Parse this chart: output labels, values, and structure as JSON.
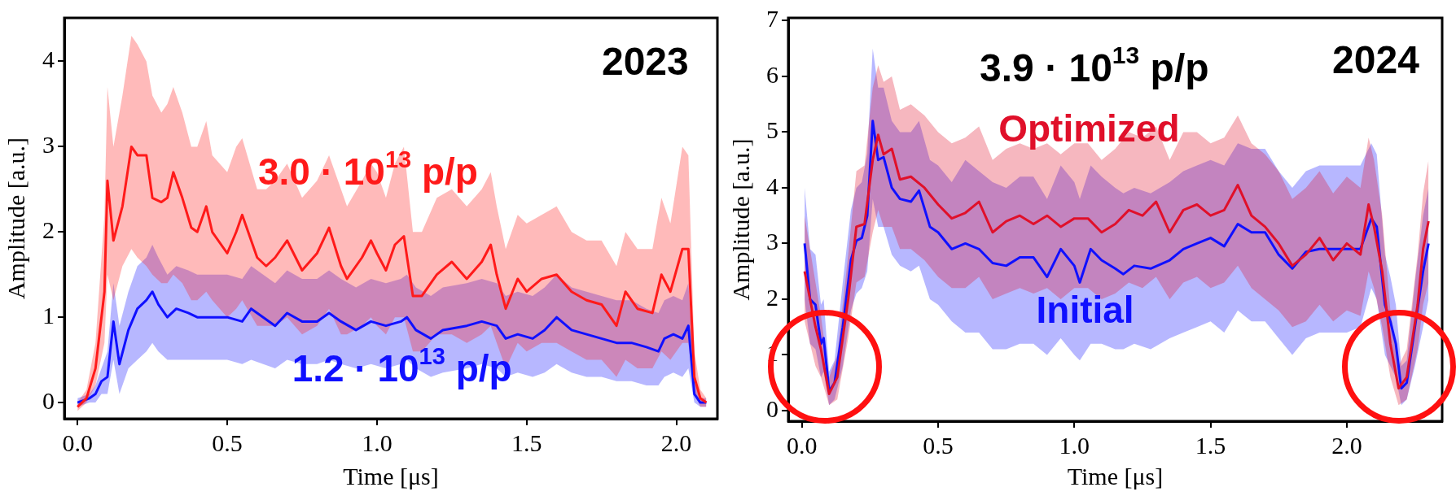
{
  "chart_data": [
    {
      "type": "line",
      "xlabel": "Time [μs]",
      "ylabel": "Amplitude [a.u.]",
      "xlim": [
        -0.044,
        2.137
      ],
      "ylim": [
        -0.19,
        4.51
      ],
      "xticks": [
        {
          "value": 0,
          "label": "0.0"
        },
        {
          "value": 0.5,
          "label": "0.5"
        },
        {
          "value": 1,
          "label": "1.0"
        },
        {
          "value": 1.5,
          "label": "1.5"
        },
        {
          "value": 2,
          "label": "2.0"
        }
      ],
      "yticks": [
        0,
        1,
        2,
        3,
        4
      ],
      "annotations": [
        "2023"
      ],
      "series": [
        {
          "name": "3.0 · 10$^{13}$ p/p",
          "color": "#ff1a1a",
          "x": [
            0,
            0.03,
            0.06,
            0.09,
            0.1,
            0.12,
            0.15,
            0.18,
            0.2,
            0.23,
            0.25,
            0.28,
            0.3,
            0.32,
            0.35,
            0.38,
            0.4,
            0.43,
            0.45,
            0.5,
            0.53,
            0.55,
            0.6,
            0.63,
            0.66,
            0.7,
            0.75,
            0.8,
            0.84,
            0.88,
            0.9,
            0.95,
            0.98,
            1.0,
            1.03,
            1.06,
            1.09,
            1.12,
            1.15,
            1.2,
            1.25,
            1.3,
            1.35,
            1.38,
            1.4,
            1.43,
            1.47,
            1.5,
            1.55,
            1.6,
            1.65,
            1.7,
            1.75,
            1.8,
            1.83,
            1.87,
            1.92,
            1.95,
            1.98,
            2.02,
            2.04,
            2.06,
            2.08,
            2.1
          ],
          "values": [
            -0.05,
            0.05,
            0.4,
            1.3,
            2.6,
            1.9,
            2.3,
            3.0,
            2.9,
            2.9,
            2.4,
            2.35,
            2.4,
            2.7,
            2.4,
            2.05,
            2.0,
            2.3,
            2.0,
            1.75,
            2.0,
            2.2,
            1.7,
            1.6,
            1.7,
            1.9,
            1.55,
            1.75,
            2.05,
            1.6,
            1.45,
            1.7,
            1.9,
            1.75,
            1.55,
            1.85,
            1.95,
            1.25,
            1.25,
            1.5,
            1.65,
            1.45,
            1.65,
            1.85,
            1.5,
            1.1,
            1.45,
            1.3,
            1.45,
            1.5,
            1.3,
            1.2,
            1.15,
            0.9,
            1.3,
            1.1,
            1.05,
            1.5,
            1.3,
            1.8,
            1.8,
            0.3,
            0.05,
            0.0
          ],
          "lower": [
            -0.1,
            0,
            0.2,
            0.7,
            1.5,
            1.2,
            1.6,
            1.8,
            1.7,
            1.6,
            1.5,
            1.4,
            1.4,
            1.5,
            1.4,
            1.2,
            1.2,
            1.3,
            1.2,
            1.0,
            1.1,
            1.2,
            0.9,
            0.9,
            0.9,
            1.0,
            0.8,
            0.9,
            1.1,
            0.8,
            0.8,
            0.9,
            1.0,
            0.9,
            0.8,
            1.0,
            1.0,
            0.6,
            0.6,
            0.8,
            0.8,
            0.7,
            0.8,
            0.9,
            0.7,
            0.4,
            0.7,
            0.6,
            0.7,
            0.7,
            0.6,
            0.5,
            0.5,
            0.3,
            0.5,
            0.4,
            0.4,
            0.6,
            0.5,
            0.7,
            0.7,
            0.1,
            -0.05,
            -0.05
          ],
          "upper": [
            0,
            0.15,
            0.7,
            2.2,
            3.7,
            3.0,
            3.6,
            4.3,
            4.2,
            4.0,
            3.6,
            3.4,
            3.5,
            3.7,
            3.4,
            3.0,
            3.0,
            3.3,
            2.9,
            2.7,
            3.0,
            3.1,
            2.5,
            2.5,
            2.6,
            2.8,
            2.4,
            2.6,
            2.9,
            2.5,
            2.3,
            2.6,
            2.8,
            2.7,
            2.4,
            2.8,
            3.0,
            2.0,
            2.0,
            2.4,
            2.5,
            2.3,
            2.5,
            2.7,
            2.3,
            1.8,
            2.2,
            2.1,
            2.2,
            2.3,
            2.0,
            1.9,
            1.9,
            1.6,
            2.0,
            1.8,
            1.8,
            2.4,
            2.1,
            3.0,
            2.9,
            0.6,
            0.15,
            0.05
          ]
        },
        {
          "name": "1.2 · 10$^{13}$ p/p",
          "color": "#1010ff",
          "x": [
            0,
            0.04,
            0.06,
            0.08,
            0.1,
            0.12,
            0.14,
            0.17,
            0.2,
            0.23,
            0.25,
            0.27,
            0.3,
            0.33,
            0.37,
            0.4,
            0.45,
            0.5,
            0.55,
            0.58,
            0.62,
            0.66,
            0.7,
            0.75,
            0.8,
            0.84,
            0.88,
            0.93,
            0.98,
            1.03,
            1.08,
            1.1,
            1.13,
            1.18,
            1.22,
            1.3,
            1.35,
            1.4,
            1.43,
            1.47,
            1.52,
            1.56,
            1.6,
            1.65,
            1.7,
            1.75,
            1.8,
            1.85,
            1.9,
            1.94,
            1.96,
            1.99,
            2.02,
            2.04,
            2.06,
            2.08,
            2.1
          ],
          "values": [
            0.0,
            0.05,
            0.1,
            0.25,
            0.3,
            0.95,
            0.45,
            0.85,
            1.1,
            1.2,
            1.3,
            1.15,
            1.0,
            1.1,
            1.05,
            1.0,
            1.0,
            1.0,
            0.95,
            1.1,
            1.0,
            0.9,
            1.05,
            0.95,
            0.95,
            1.05,
            0.95,
            0.85,
            0.95,
            0.9,
            0.95,
            1.0,
            0.85,
            0.75,
            0.85,
            0.9,
            0.95,
            0.9,
            0.75,
            0.8,
            0.75,
            0.85,
            1.0,
            0.85,
            0.8,
            0.75,
            0.7,
            0.7,
            0.65,
            0.6,
            0.75,
            0.8,
            0.75,
            0.9,
            0.1,
            0.0,
            0.0
          ],
          "lower": [
            -0.05,
            0,
            0,
            0.1,
            0.1,
            0.5,
            0.1,
            0.4,
            0.5,
            0.6,
            0.7,
            0.6,
            0.5,
            0.5,
            0.5,
            0.5,
            0.5,
            0.5,
            0.45,
            0.5,
            0.45,
            0.4,
            0.5,
            0.45,
            0.45,
            0.5,
            0.45,
            0.4,
            0.45,
            0.4,
            0.45,
            0.5,
            0.4,
            0.3,
            0.35,
            0.4,
            0.45,
            0.4,
            0.3,
            0.35,
            0.3,
            0.35,
            0.45,
            0.35,
            0.3,
            0.3,
            0.25,
            0.25,
            0.2,
            0.2,
            0.3,
            0.35,
            0.3,
            0.4,
            0,
            -0.05,
            -0.05
          ],
          "upper": [
            0.05,
            0.1,
            0.2,
            0.4,
            0.6,
            1.4,
            0.9,
            1.3,
            1.6,
            1.7,
            1.85,
            1.7,
            1.5,
            1.6,
            1.55,
            1.5,
            1.5,
            1.5,
            1.45,
            1.6,
            1.5,
            1.4,
            1.55,
            1.45,
            1.45,
            1.55,
            1.45,
            1.35,
            1.45,
            1.4,
            1.45,
            1.5,
            1.35,
            1.25,
            1.35,
            1.4,
            1.45,
            1.4,
            1.25,
            1.3,
            1.25,
            1.35,
            1.5,
            1.35,
            1.3,
            1.25,
            1.2,
            1.2,
            1.1,
            1.05,
            1.2,
            1.25,
            1.2,
            1.4,
            0.3,
            0.05,
            0.05
          ]
        }
      ]
    },
    {
      "type": "line",
      "xlabel": "Time [μs]",
      "ylabel": "Amplitude [a.u.]",
      "xlim": [
        -0.05,
        2.35
      ],
      "ylim": [
        -0.19,
        7.05
      ],
      "xticks": [
        {
          "value": 0,
          "label": "0.0"
        },
        {
          "value": 0.5,
          "label": "0.5"
        },
        {
          "value": 1,
          "label": "1.0"
        },
        {
          "value": 1.5,
          "label": "1.5"
        },
        {
          "value": 2,
          "label": "2.0"
        }
      ],
      "yticks": [
        0,
        1,
        2,
        3,
        4,
        5,
        6,
        7
      ],
      "annotations": [
        "2024",
        "3.9 · 10$^{13}$ p/p"
      ],
      "series": [
        {
          "name": "Optimized",
          "color": "#e0102a",
          "x": [
            0.01,
            0.05,
            0.07,
            0.1,
            0.13,
            0.17,
            0.2,
            0.23,
            0.26,
            0.28,
            0.3,
            0.33,
            0.36,
            0.4,
            0.45,
            0.5,
            0.55,
            0.6,
            0.65,
            0.7,
            0.75,
            0.8,
            0.85,
            0.9,
            0.95,
            1.0,
            1.05,
            1.1,
            1.15,
            1.2,
            1.25,
            1.3,
            1.35,
            1.4,
            1.45,
            1.5,
            1.55,
            1.6,
            1.65,
            1.7,
            1.75,
            1.8,
            1.85,
            1.9,
            1.95,
            2.0,
            2.05,
            2.08,
            2.1,
            2.13,
            2.16,
            2.19,
            2.22,
            2.26,
            2.28,
            2.3
          ],
          "values": [
            2.5,
            1.5,
            1.1,
            0.3,
            0.6,
            2.0,
            3.3,
            3.35,
            4.5,
            4.95,
            4.6,
            4.7,
            4.15,
            4.2,
            4.0,
            3.7,
            3.45,
            3.55,
            3.75,
            3.2,
            3.4,
            3.5,
            3.35,
            3.5,
            3.3,
            3.45,
            3.45,
            3.2,
            3.35,
            3.6,
            3.5,
            3.75,
            3.2,
            3.6,
            3.7,
            3.5,
            3.6,
            4.05,
            3.5,
            3.3,
            3.0,
            2.6,
            2.8,
            3.1,
            2.7,
            3.0,
            2.8,
            3.7,
            3.3,
            2.5,
            1.2,
            0.4,
            0.6,
            1.9,
            2.9,
            3.4
          ],
          "lower": [
            1.6,
            0.8,
            0.6,
            0.1,
            0.2,
            1.3,
            2.3,
            2.4,
            3.2,
            3.6,
            3.3,
            3.3,
            2.9,
            2.9,
            2.7,
            2.4,
            2.2,
            2.2,
            2.4,
            2.0,
            2.1,
            2.2,
            2.1,
            2.2,
            2.0,
            2.2,
            2.2,
            2.0,
            2.1,
            2.3,
            2.2,
            2.4,
            2.0,
            2.3,
            2.4,
            2.2,
            2.3,
            2.6,
            2.2,
            2.0,
            1.8,
            1.5,
            1.6,
            1.9,
            1.6,
            1.8,
            1.7,
            2.5,
            2.2,
            1.5,
            0.6,
            0.1,
            0.2,
            1.1,
            1.9,
            2.3
          ],
          "upper": [
            3.5,
            2.3,
            1.7,
            0.6,
            1.0,
            2.8,
            4.3,
            4.4,
            5.8,
            6.2,
            5.9,
            6.0,
            5.4,
            5.5,
            5.3,
            5.0,
            4.8,
            4.9,
            5.1,
            4.5,
            4.7,
            4.8,
            4.7,
            4.8,
            4.6,
            4.8,
            4.8,
            4.5,
            4.7,
            5.0,
            4.9,
            5.1,
            4.5,
            5.0,
            5.0,
            4.8,
            4.9,
            5.3,
            4.8,
            4.6,
            4.3,
            3.8,
            4.0,
            4.3,
            3.9,
            4.2,
            4.0,
            4.9,
            4.5,
            3.5,
            1.8,
            0.8,
            1.1,
            2.8,
            3.9,
            4.5
          ]
        },
        {
          "name": "Initial",
          "color": "#1010ff",
          "x": [
            0.01,
            0.03,
            0.05,
            0.07,
            0.08,
            0.1,
            0.12,
            0.15,
            0.18,
            0.2,
            0.22,
            0.24,
            0.26,
            0.28,
            0.3,
            0.33,
            0.36,
            0.4,
            0.43,
            0.47,
            0.5,
            0.55,
            0.6,
            0.65,
            0.7,
            0.75,
            0.8,
            0.85,
            0.9,
            0.95,
            1.0,
            1.02,
            1.06,
            1.1,
            1.15,
            1.18,
            1.22,
            1.28,
            1.35,
            1.4,
            1.45,
            1.5,
            1.55,
            1.6,
            1.65,
            1.7,
            1.75,
            1.8,
            1.85,
            1.9,
            1.95,
            2.0,
            2.05,
            2.09,
            2.11,
            2.14,
            2.16,
            2.18,
            2.2,
            2.22,
            2.25,
            2.28,
            2.3
          ],
          "values": [
            3.0,
            2.0,
            1.9,
            1.2,
            1.3,
            0.35,
            0.5,
            1.5,
            2.7,
            3.05,
            3.1,
            3.5,
            5.2,
            4.5,
            4.55,
            4.0,
            3.8,
            3.75,
            3.95,
            3.3,
            3.2,
            2.9,
            3.0,
            2.9,
            2.65,
            2.6,
            2.75,
            2.75,
            2.4,
            2.9,
            2.6,
            2.3,
            2.9,
            2.7,
            2.55,
            2.45,
            2.6,
            2.55,
            2.7,
            2.9,
            3.0,
            3.1,
            2.95,
            3.35,
            3.2,
            3.2,
            2.8,
            2.55,
            2.85,
            2.9,
            2.9,
            2.9,
            2.9,
            3.45,
            3.3,
            1.9,
            1.6,
            1.2,
            0.4,
            0.5,
            1.5,
            2.5,
            3.0
          ],
          "lower": [
            2.0,
            1.2,
            1.1,
            0.6,
            0.7,
            0.1,
            0.2,
            0.8,
            1.8,
            2.1,
            2.2,
            2.5,
            3.8,
            3.3,
            3.3,
            2.8,
            2.6,
            2.5,
            2.6,
            2.0,
            1.9,
            1.6,
            1.4,
            1.4,
            1.1,
            1.1,
            1.2,
            1.2,
            1.0,
            1.3,
            1.0,
            0.9,
            1.2,
            1.2,
            1.1,
            1.1,
            1.2,
            1.1,
            1.3,
            1.4,
            1.5,
            1.6,
            1.4,
            1.8,
            1.6,
            1.6,
            1.3,
            1.0,
            1.3,
            1.4,
            1.4,
            1.4,
            1.5,
            2.2,
            2.0,
            1.0,
            0.8,
            0.6,
            0.1,
            0.2,
            0.8,
            1.5,
            2.0
          ],
          "upper": [
            4.0,
            2.9,
            2.8,
            1.9,
            2.0,
            0.7,
            0.9,
            2.3,
            3.6,
            4.0,
            4.1,
            4.6,
            6.5,
            5.8,
            5.8,
            5.2,
            5.0,
            5.0,
            5.2,
            4.5,
            4.4,
            4.1,
            4.5,
            4.3,
            4.1,
            4.0,
            4.2,
            4.2,
            3.8,
            4.4,
            4.1,
            3.8,
            4.4,
            4.2,
            4.0,
            3.9,
            4.0,
            3.9,
            4.1,
            4.3,
            4.4,
            4.5,
            4.4,
            4.8,
            4.7,
            4.7,
            4.3,
            4.0,
            4.3,
            4.4,
            4.4,
            4.4,
            4.4,
            4.8,
            4.6,
            2.8,
            2.4,
            1.9,
            0.8,
            0.9,
            2.3,
            3.5,
            4.0
          ]
        }
      ]
    }
  ]
}
